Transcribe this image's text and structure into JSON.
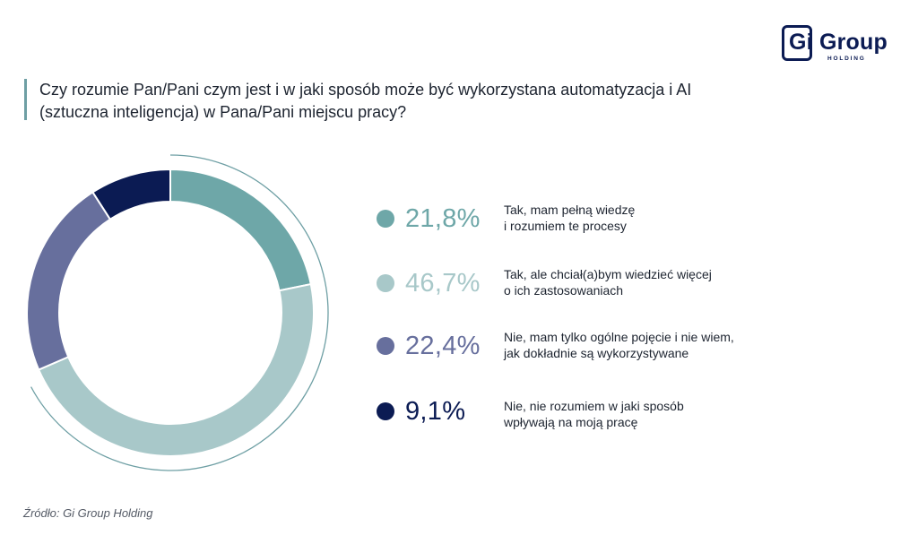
{
  "logo": {
    "word_gi": "Gi",
    "word_group": "Group",
    "sub": "HOLDING"
  },
  "title": "Czy rozumie Pan/Pani czym jest i w jaki sposób może być wykorzystana automatyzacja i AI (sztuczna inteligencja) w Pana/Pani miejscu pracy?",
  "source": "Źródło: Gi Group Holding",
  "colors": {
    "accent_bar": "#6e9fa4",
    "brand_navy": "#0b1b53",
    "outer_arc": "#6e9fa4"
  },
  "chart_data": {
    "type": "pie",
    "style": "donut",
    "title": "Czy rozumie Pan/Pani czym jest i w jaki sposób może być wykorzystana automatyzacja i AI (sztuczna inteligencja) w Pana/Pani miejscu pracy?",
    "legend_placement": "right",
    "slices": [
      {
        "label": "Tak, mam pełną wiedzę i rozumiem te procesy",
        "line1": "Tak, mam pełną wiedzę",
        "line2": "i rozumiem te procesy",
        "value": 21.8,
        "display": "21,8%",
        "color": "#6ea7a8"
      },
      {
        "label": "Tak, ale chciał(a)bym wiedzieć więcej o ich zastosowaniach",
        "line1": "Tak, ale chciał(a)bym wiedzieć więcej",
        "line2": "o ich zastosowaniach",
        "value": 46.7,
        "display": "46,7%",
        "color": "#a8c8c9"
      },
      {
        "label": "Nie, mam tylko ogólne pojęcie i nie wiem, jak dokładnie są wykorzystywane",
        "line1": "Nie, mam tylko ogólne pojęcie i nie wiem,",
        "line2": "jak dokładnie są wykorzystywane",
        "value": 22.4,
        "display": "22,4%",
        "color": "#676f9d"
      },
      {
        "label": "Nie, nie rozumiem w jaki sposób wpływają na moją pracę",
        "line1": "Nie, nie rozumiem w jaki sposób",
        "line2": "wpływają na moją pracę",
        "value": 9.1,
        "display": "9,1%",
        "color": "#0b1b53"
      }
    ]
  }
}
